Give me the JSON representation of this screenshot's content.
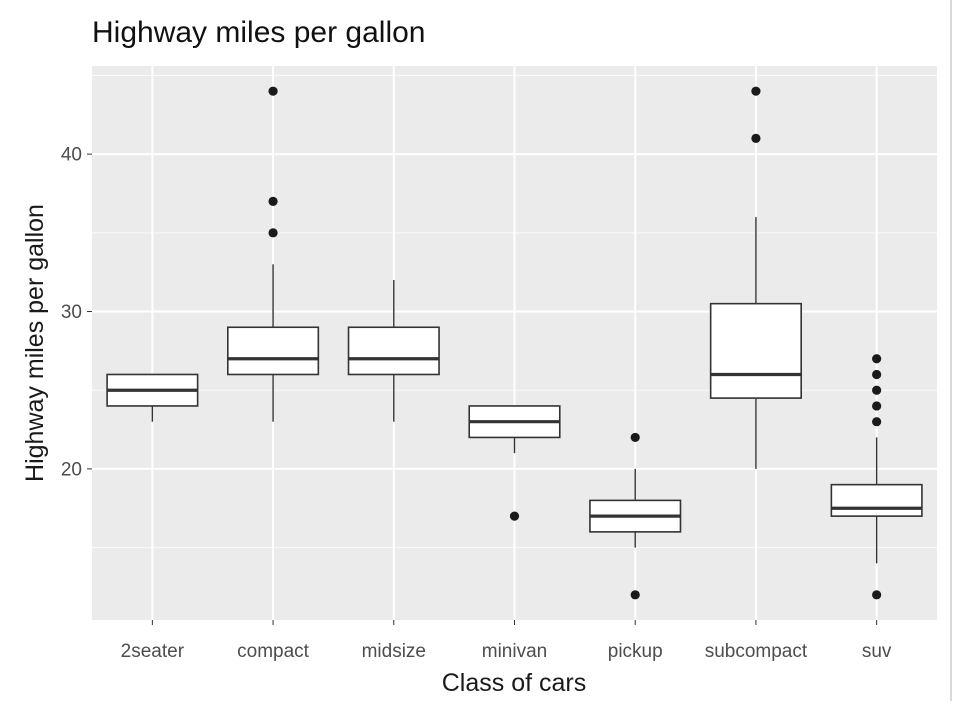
{
  "chart_data": {
    "type": "boxplot",
    "title": "Highway miles per gallon",
    "xlabel": "Class of cars",
    "ylabel": "Highway miles per gallon",
    "ylim": [
      10.4,
      45.6
    ],
    "yticks": [
      20,
      30,
      40
    ],
    "grid": true,
    "legend": "none",
    "colors": {
      "panel": "#ebebeb",
      "grid": "#ffffff",
      "box_fill": "#ffffff",
      "box_line": "#333333",
      "outlier": "#1a1a1a",
      "text": "#4d4d4d"
    },
    "categories": [
      "2seater",
      "compact",
      "midsize",
      "minivan",
      "pickup",
      "subcompact",
      "suv"
    ],
    "boxes": [
      {
        "category": "2seater",
        "lower_whisker": 23,
        "q1": 24,
        "median": 25,
        "q3": 26,
        "upper_whisker": 26,
        "outliers": []
      },
      {
        "category": "compact",
        "lower_whisker": 23,
        "q1": 26,
        "median": 27,
        "q3": 29,
        "upper_whisker": 33,
        "outliers": [
          35,
          37,
          44
        ]
      },
      {
        "category": "midsize",
        "lower_whisker": 23,
        "q1": 26,
        "median": 27,
        "q3": 29,
        "upper_whisker": 32,
        "outliers": []
      },
      {
        "category": "minivan",
        "lower_whisker": 21,
        "q1": 22,
        "median": 23,
        "q3": 24,
        "upper_whisker": 24,
        "outliers": [
          17
        ]
      },
      {
        "category": "pickup",
        "lower_whisker": 15,
        "q1": 16,
        "median": 17,
        "q3": 18,
        "upper_whisker": 20,
        "outliers": [
          12,
          22
        ]
      },
      {
        "category": "subcompact",
        "lower_whisker": 20,
        "q1": 24.5,
        "median": 26,
        "q3": 30.5,
        "upper_whisker": 36,
        "outliers": [
          41,
          44
        ]
      },
      {
        "category": "suv",
        "lower_whisker": 14,
        "q1": 17,
        "median": 17.5,
        "q3": 19,
        "upper_whisker": 22,
        "outliers": [
          12,
          23,
          24,
          25,
          26,
          27
        ]
      }
    ]
  }
}
